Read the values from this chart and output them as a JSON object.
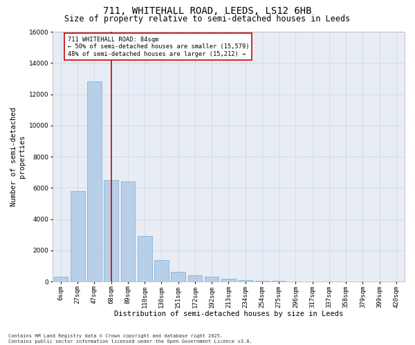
{
  "title_line1": "711, WHITEHALL ROAD, LEEDS, LS12 6HB",
  "title_line2": "Size of property relative to semi-detached houses in Leeds",
  "xlabel": "Distribution of semi-detached houses by size in Leeds",
  "ylabel": "Number of semi-detached\nproperties",
  "categories": [
    "6sqm",
    "27sqm",
    "47sqm",
    "68sqm",
    "89sqm",
    "110sqm",
    "130sqm",
    "151sqm",
    "172sqm",
    "192sqm",
    "213sqm",
    "234sqm",
    "254sqm",
    "275sqm",
    "296sqm",
    "317sqm",
    "337sqm",
    "358sqm",
    "379sqm",
    "399sqm",
    "420sqm"
  ],
  "values": [
    300,
    5800,
    12800,
    6500,
    6400,
    2900,
    1350,
    600,
    380,
    300,
    180,
    70,
    45,
    25,
    15,
    8,
    4,
    2,
    1,
    0,
    0
  ],
  "bar_color": "#b8cfe8",
  "bar_edge_color": "#7aaad0",
  "vline_x": 3,
  "vline_color": "#cc0000",
  "annotation_text": "711 WHITEHALL ROAD: 84sqm\n← 50% of semi-detached houses are smaller (15,579)\n48% of semi-detached houses are larger (15,212) →",
  "annotation_box_color": "#ffffff",
  "annotation_box_edge_color": "#cc0000",
  "background_color": "#ffffff",
  "plot_bg_color": "#e8edf5",
  "grid_color": "#c8d4e8",
  "ylim": [
    0,
    16000
  ],
  "yticks": [
    0,
    2000,
    4000,
    6000,
    8000,
    10000,
    12000,
    14000,
    16000
  ],
  "footnote": "Contains HM Land Registry data © Crown copyright and database right 2025.\nContains public sector information licensed under the Open Government Licence v3.0.",
  "title_fontsize": 10,
  "subtitle_fontsize": 8.5,
  "tick_fontsize": 6.5,
  "axis_label_fontsize": 7.5,
  "annot_fontsize": 6.2,
  "footnote_fontsize": 5.0
}
